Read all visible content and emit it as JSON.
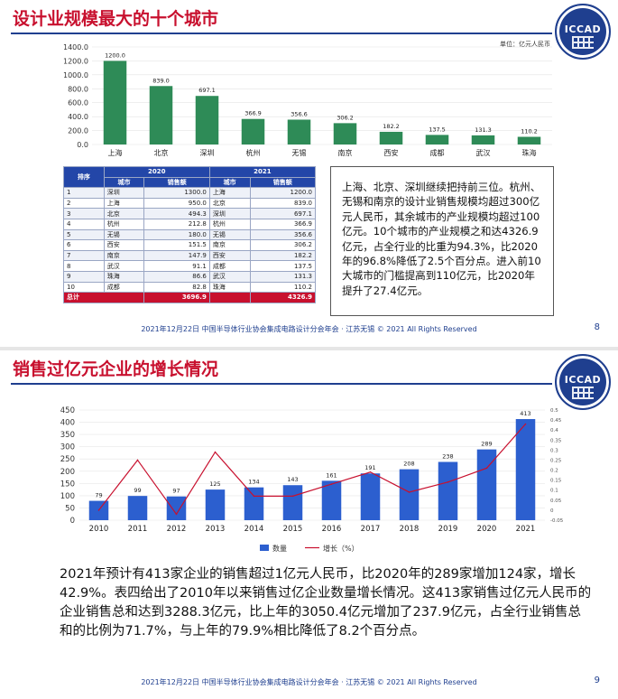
{
  "slide1": {
    "title": "设计业规模最大的十个城市",
    "logo_text": "ICCAD",
    "unit_label": "单位：亿元人民币",
    "chart_data": {
      "type": "bar",
      "title": "设计业规模最大的十个城市",
      "categories": [
        "上海",
        "北京",
        "深圳",
        "杭州",
        "无锡",
        "南京",
        "西安",
        "成都",
        "武汉",
        "珠海"
      ],
      "values": [
        1200.0,
        839.0,
        697.1,
        366.9,
        356.6,
        306.2,
        182.2,
        137.5,
        131.3,
        110.2
      ],
      "value_labels": [
        "1200.0",
        "839.0",
        "697.1",
        "366.9",
        "356.6",
        "306.2",
        "182.2",
        "137.5",
        "131.3",
        "110.2"
      ],
      "ylabel": "单位：亿元人民币",
      "ylim": [
        0,
        1400
      ],
      "yticks": [
        "0.0",
        "200.0",
        "400.0",
        "600.0",
        "800.0",
        "1000.0",
        "1200.0",
        "1400.0"
      ],
      "color": "#2e8b57"
    },
    "table": {
      "rank_header": "排序",
      "year_2020": "2020",
      "year_2021": "2021",
      "city_header": "城市",
      "sales_header": "销售额",
      "rows": [
        {
          "rank": "1",
          "c2020": "深圳",
          "s2020": "1300.0",
          "c2021": "上海",
          "s2021": "1200.0"
        },
        {
          "rank": "2",
          "c2020": "上海",
          "s2020": "950.0",
          "c2021": "北京",
          "s2021": "839.0"
        },
        {
          "rank": "3",
          "c2020": "北京",
          "s2020": "494.3",
          "c2021": "深圳",
          "s2021": "697.1"
        },
        {
          "rank": "4",
          "c2020": "杭州",
          "s2020": "212.8",
          "c2021": "杭州",
          "s2021": "366.9"
        },
        {
          "rank": "5",
          "c2020": "无锡",
          "s2020": "180.0",
          "c2021": "无锡",
          "s2021": "356.6"
        },
        {
          "rank": "6",
          "c2020": "西安",
          "s2020": "151.5",
          "c2021": "南京",
          "s2021": "306.2"
        },
        {
          "rank": "7",
          "c2020": "南京",
          "s2020": "147.9",
          "c2021": "西安",
          "s2021": "182.2"
        },
        {
          "rank": "8",
          "c2020": "武汉",
          "s2020": "91.1",
          "c2021": "成都",
          "s2021": "137.5"
        },
        {
          "rank": "9",
          "c2020": "珠海",
          "s2020": "86.6",
          "c2021": "武汉",
          "s2021": "131.3"
        },
        {
          "rank": "10",
          "c2020": "成都",
          "s2020": "82.8",
          "c2021": "珠海",
          "s2021": "110.2"
        }
      ],
      "total_label": "总计",
      "total_2020": "3696.9",
      "total_2021": "4326.9"
    },
    "summary": "上海、北京、深圳继续把持前三位。杭州、无锡和南京的设计业销售规模均超过300亿元人民币，其余城市的产业规模均超过100亿元。10个城市的产业规模之和达4326.9亿元，占全行业的比重为94.3%，比2020年的96.8%降低了2.5个百分点。进入前10大城市的门槛提高到110亿元，比2020年提升了27.4亿元。",
    "footer": "2021年12月22日  中国半导体行业协会集成电路设计分会年会 · 江苏无锡 © 2021 All Rights Reserved",
    "page": "8"
  },
  "slide2": {
    "title": "销售过亿元企业的增长情况",
    "logo_text": "ICCAD",
    "chart_data": {
      "type": "bar",
      "title": "销售过亿元企业的增长情况",
      "categories": [
        "2010",
        "2011",
        "2012",
        "2013",
        "2014",
        "2015",
        "2016",
        "2017",
        "2018",
        "2019",
        "2020",
        "2021"
      ],
      "series": [
        {
          "name": "数量",
          "type": "bar",
          "color": "#2c5fcf",
          "values": [
            79,
            99,
            97,
            125,
            134,
            143,
            161,
            191,
            208,
            238,
            289,
            413
          ]
        },
        {
          "name": "增长（%）",
          "type": "line",
          "color": "#c8102e",
          "values": [
            0.0,
            0.25,
            -0.02,
            0.29,
            0.07,
            0.07,
            0.13,
            0.19,
            0.09,
            0.14,
            0.21,
            0.43
          ]
        }
      ],
      "ylim": [
        0,
        450
      ],
      "yticks": [
        "0",
        "50",
        "100",
        "150",
        "200",
        "250",
        "300",
        "350",
        "400",
        "450"
      ],
      "y2lim": [
        -0.05,
        0.5
      ],
      "y2ticks": [
        "-0.05",
        "0",
        "0.05",
        "0.1",
        "0.15",
        "0.2",
        "0.25",
        "0.3",
        "0.35",
        "0.4",
        "0.45",
        "0.5"
      ],
      "legend_bar": "数量",
      "legend_line": "增长（%）"
    },
    "paragraph": "2021年预计有413家企业的销售超过1亿元人民币，比2020年的289家增加124家，增长42.9%。表四给出了2010年以来销售过亿企业数量增长情况。这413家销售过亿元人民币的企业销售总和达到3288.3亿元，比上年的3050.4亿元增加了237.9亿元，占全行业销售总和的比例为71.7%，与上年的79.9%相比降低了8.2个百分点。",
    "footer": "2021年12月22日  中国半导体行业协会集成电路设计分会年会 · 江苏无锡 © 2021 All Rights Reserved",
    "page": "9"
  }
}
